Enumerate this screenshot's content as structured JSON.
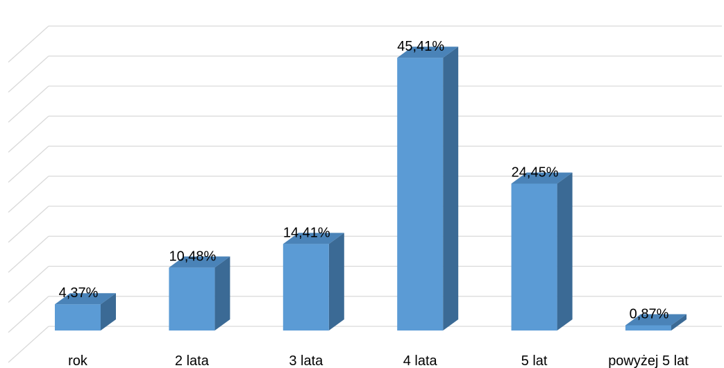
{
  "chart_data": {
    "type": "bar",
    "style": "3d-column",
    "categories": [
      "rok",
      "2 lata",
      "3 lata",
      "4 lata",
      "5 lat",
      "powyżej 5 lat"
    ],
    "values": [
      4.37,
      10.48,
      14.41,
      45.41,
      24.45,
      0.87
    ],
    "value_labels": [
      "4,37%",
      "10,48%",
      "14,41%",
      "45,41%",
      "24,45%",
      "0,87%"
    ],
    "unit": "%",
    "ylim": [
      0,
      50
    ],
    "grid": true,
    "legend": "none",
    "title": "",
    "xlabel": "",
    "ylabel": "",
    "colors": {
      "bar_front": "#5b9bd5",
      "bar_top": "#4a83b8",
      "bar_side": "#3b6a95",
      "grid": "#d9d9d9"
    }
  }
}
